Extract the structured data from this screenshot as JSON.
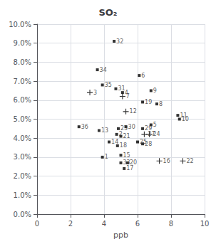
{
  "chart_data": {
    "type": "scatter",
    "title": "SO₂",
    "xlabel": "ppb",
    "xlim": [
      0,
      10
    ],
    "ylim": [
      0.0,
      0.1
    ],
    "xticks": [
      0,
      2,
      4,
      6,
      8,
      10
    ],
    "yticks": [
      {
        "value": 0.0,
        "label": "0.0%"
      },
      {
        "value": 0.01,
        "label": "1.0%"
      },
      {
        "value": 0.02,
        "label": "2.0%"
      },
      {
        "value": 0.03,
        "label": "3.0%"
      },
      {
        "value": 0.04,
        "label": "4.0%"
      },
      {
        "value": 0.05,
        "label": "5.0%"
      },
      {
        "value": 0.06,
        "label": "6.0%"
      },
      {
        "value": 0.07,
        "label": "7.0%"
      },
      {
        "value": 0.08,
        "label": "8.0%"
      },
      {
        "value": 0.09,
        "label": "9.0%"
      },
      {
        "value": 0.1,
        "label": "10.0%"
      }
    ],
    "grid": true,
    "color": "#000000",
    "series": [
      {
        "marker": "square",
        "labels": [
          "1",
          "2",
          "4",
          "5",
          "6",
          "8",
          "9",
          "10",
          "11",
          "13",
          "14",
          "15",
          "17",
          "18",
          "19",
          "20",
          "21",
          "23",
          "25",
          "28",
          "29",
          "30",
          "31",
          "32",
          "33",
          "34",
          "35",
          "36"
        ],
        "x": [
          3.9,
          4.75,
          5.1,
          6.8,
          6.1,
          7.15,
          6.8,
          8.5,
          8.4,
          3.7,
          4.3,
          5.0,
          5.2,
          4.8,
          6.3,
          5.4,
          5.0,
          4.85,
          6.0,
          6.3,
          6.3,
          5.3,
          4.7,
          4.6,
          5.0,
          3.6,
          3.9,
          2.5
        ],
        "values": [
          0.03,
          0.042,
          0.064,
          0.047,
          0.073,
          0.058,
          0.065,
          0.05,
          0.052,
          0.044,
          0.038,
          0.031,
          0.024,
          0.036,
          0.059,
          0.027,
          0.041,
          0.045,
          0.038,
          0.037,
          0.045,
          0.046,
          0.066,
          0.091,
          0.027,
          0.076,
          0.068,
          0.046
        ]
      },
      {
        "marker": "plus",
        "labels": [
          "3",
          "7",
          "12",
          "16",
          "22",
          "24",
          "27"
        ],
        "x": [
          3.15,
          5.1,
          5.3,
          7.3,
          8.7,
          6.7,
          6.4
        ],
        "values": [
          0.064,
          0.062,
          0.054,
          0.028,
          0.028,
          0.042,
          0.042
        ]
      }
    ]
  }
}
